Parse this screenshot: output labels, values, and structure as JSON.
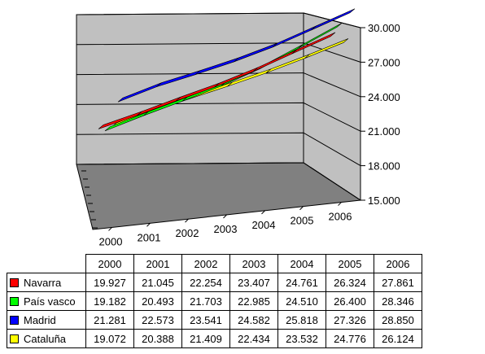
{
  "chart_data": {
    "type": "line",
    "style": "3d-ribbon",
    "title": "",
    "xlabel": "",
    "ylabel": "",
    "categories": [
      "2000",
      "2001",
      "2002",
      "2003",
      "2004",
      "2005",
      "2006"
    ],
    "ylim": [
      15000,
      30000
    ],
    "yticks": [
      "15.000",
      "18.000",
      "21.000",
      "24.000",
      "27.000",
      "30.000"
    ],
    "grid": true,
    "legend": "data table below chart",
    "series": [
      {
        "name": "Navarra",
        "color": "#ff0000",
        "values": [
          19927,
          21045,
          22254,
          23407,
          24761,
          26324,
          27861
        ],
        "labels": [
          "19.927",
          "21.045",
          "22.254",
          "23.407",
          "24.761",
          "26.324",
          "27.861"
        ]
      },
      {
        "name": "País vasco",
        "color": "#00ff00",
        "values": [
          19182,
          20493,
          21703,
          22985,
          24510,
          26400,
          28346
        ],
        "labels": [
          "19.182",
          "20.493",
          "21.703",
          "22.985",
          "24.510",
          "26.400",
          "28.346"
        ]
      },
      {
        "name": "Madrid",
        "color": "#0000ff",
        "values": [
          21281,
          22573,
          23541,
          24582,
          25818,
          27326,
          28850
        ],
        "labels": [
          "21.281",
          "22.573",
          "23.541",
          "24.582",
          "25.818",
          "27.326",
          "28.850"
        ]
      },
      {
        "name": "Cataluña",
        "color": "#ffff00",
        "values": [
          19072,
          20388,
          21409,
          22434,
          23532,
          24776,
          26124
        ],
        "labels": [
          "19.072",
          "20.388",
          "21.409",
          "22.434",
          "23.532",
          "24.776",
          "26.124"
        ]
      }
    ]
  }
}
